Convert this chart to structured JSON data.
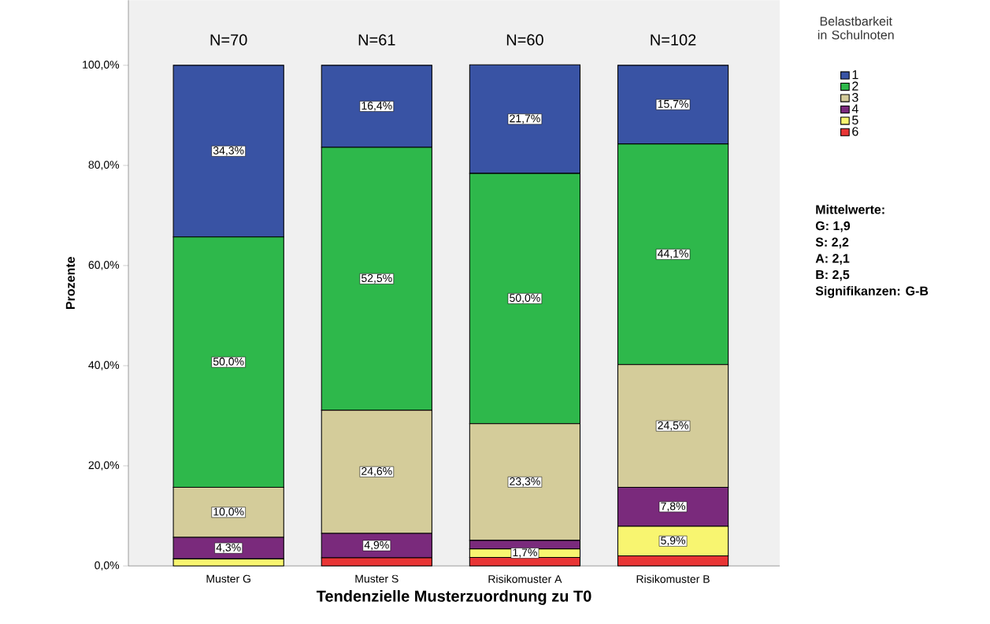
{
  "chart_data": {
    "type": "bar",
    "stacked": true,
    "xlabel": "Tendenzielle Musterzuordnung zu T0",
    "ylabel": "Prozente",
    "legend_title": "Belastbarkeit in Schulnoten",
    "categories": [
      "Muster G",
      "Muster S",
      "Risikomuster A",
      "Risikomuster B"
    ],
    "series": [
      {
        "name": "6",
        "color": "#e83535",
        "values": [
          0,
          1.6,
          1.7,
          2.0
        ],
        "value_labels": [
          null,
          null,
          null,
          null
        ]
      },
      {
        "name": "5",
        "color": "#f8f570",
        "values": [
          1.4,
          0,
          1.7,
          5.9
        ],
        "value_labels": [
          null,
          null,
          "1,7%",
          "5,9%"
        ]
      },
      {
        "name": "4",
        "color": "#7a2a7c",
        "values": [
          4.3,
          4.9,
          1.7,
          7.8
        ],
        "value_labels": [
          "4,3%",
          "4,9%",
          null,
          "7,8%"
        ]
      },
      {
        "name": "3",
        "color": "#d4cc9a",
        "values": [
          10.0,
          24.6,
          23.3,
          24.5
        ],
        "value_labels": [
          "10,0%",
          "24,6%",
          "23,3%",
          "24,5%"
        ]
      },
      {
        "name": "2",
        "color": "#2eb84b",
        "values": [
          50.0,
          52.5,
          50.0,
          44.1
        ],
        "value_labels": [
          "50,0%",
          "52,5%",
          "50,0%",
          "44,1%"
        ]
      },
      {
        "name": "1",
        "color": "#3953a4",
        "values": [
          34.3,
          16.4,
          21.7,
          15.7
        ],
        "value_labels": [
          "34,3%",
          "16,4%",
          "21,7%",
          "15,7%"
        ]
      }
    ],
    "ylim": [
      0,
      113
    ],
    "yticks": [
      {
        "value": 0,
        "label": "0,0%"
      },
      {
        "value": 20,
        "label": "20,0%"
      },
      {
        "value": 40,
        "label": "40,0%"
      },
      {
        "value": 60,
        "label": "60,0%"
      },
      {
        "value": 80,
        "label": "80,0%"
      },
      {
        "value": 100,
        "label": "100,0%"
      }
    ],
    "grid": false,
    "legend": "right",
    "annotations": [
      "N=70",
      "N=61",
      "N=60",
      "N=102",
      "Mittelwerte:",
      "G: 1,9",
      "S: 2,2",
      "A: 2,1",
      "B: 2,5",
      "Signifikanzen: G-B"
    ]
  }
}
